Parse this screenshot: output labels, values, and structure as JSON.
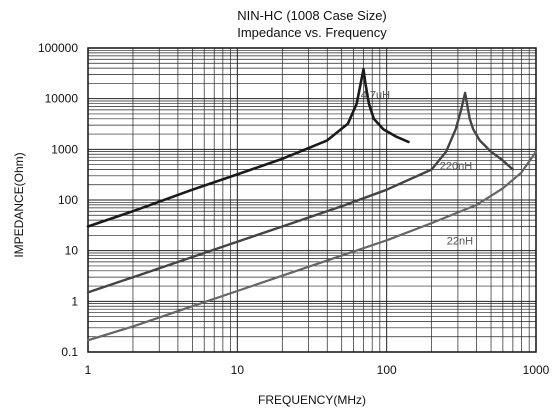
{
  "chart_data": {
    "type": "line",
    "title": "NIN-HC (1008 Case Size)",
    "subtitle": "Impedance vs. Frequency",
    "xlabel": "FREQUENCY(MHz)",
    "ylabel": "IMPEDANCE(Ohm)",
    "xscale": "log",
    "yscale": "log",
    "xlim": [
      1,
      1000
    ],
    "ylim": [
      0.1,
      100000
    ],
    "x_ticks": [
      1,
      10,
      100,
      1000
    ],
    "x_tick_labels": [
      "1",
      "10",
      "100",
      "1000"
    ],
    "y_ticks": [
      0.1,
      1,
      10,
      100,
      1000,
      10000,
      100000
    ],
    "y_tick_labels": [
      "0.1",
      "1",
      "10",
      "100",
      "1000",
      "10000",
      "100000"
    ],
    "grid": true,
    "colors": {
      "4.7uH": "#1a1a1a",
      "220nH": "#444444",
      "22nH": "#666666"
    },
    "series": [
      {
        "name": "4.7uH",
        "x": [
          1,
          2,
          5,
          10,
          20,
          40,
          55,
          63,
          67,
          70,
          72,
          76,
          82,
          95,
          115,
          140
        ],
        "y": [
          30,
          60,
          160,
          320,
          650,
          1500,
          3200,
          8000,
          20000,
          38000,
          20000,
          8000,
          4000,
          2500,
          1800,
          1400
        ]
      },
      {
        "name": "220nH",
        "x": [
          1,
          2,
          5,
          10,
          20,
          50,
          100,
          200,
          250,
          290,
          315,
          335,
          345,
          360,
          380,
          420,
          500,
          600,
          700
        ],
        "y": [
          1.5,
          3,
          7.5,
          15,
          30,
          75,
          160,
          400,
          900,
          2500,
          6000,
          13000,
          8000,
          4000,
          2500,
          1500,
          900,
          600,
          400
        ]
      },
      {
        "name": "22nH",
        "x": [
          1,
          2,
          5,
          10,
          20,
          50,
          100,
          200,
          400,
          600,
          800,
          1000
        ],
        "y": [
          0.17,
          0.32,
          0.8,
          1.6,
          3.2,
          8,
          16,
          35,
          80,
          170,
          350,
          900
        ]
      }
    ],
    "annotations": [
      {
        "text": "4.7uH",
        "series": "4.7uH"
      },
      {
        "text": "220nH",
        "series": "220nH"
      },
      {
        "text": "22nH",
        "series": "22nH"
      }
    ]
  }
}
